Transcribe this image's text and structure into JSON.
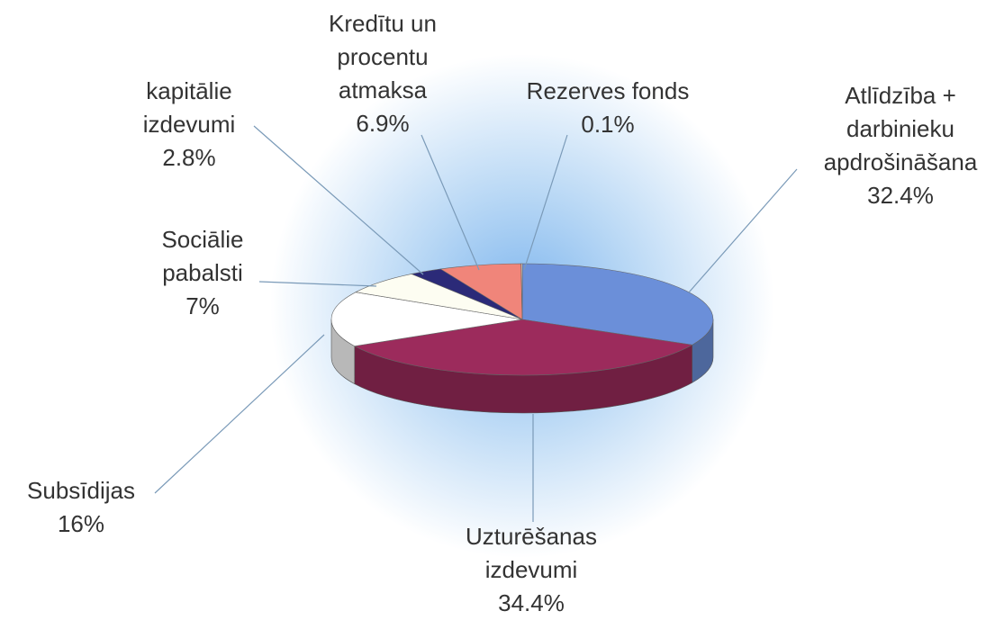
{
  "chart_data": {
    "type": "pie",
    "categories": [
      "Atlīdzība + darbinieku apdrošināšana",
      "Uzturēšanas izdevumi",
      "Subsīdijas",
      "Sociālie pabalsti",
      "kapitālie izdevumi",
      "Kredītu un procentu atmaksa",
      "Rezerves fonds"
    ],
    "values": [
      32.4,
      34.4,
      16,
      7,
      2.8,
      6.9,
      0.1
    ],
    "value_labels": [
      "32.4%",
      "34.4%",
      "16%",
      "7%",
      "2.8%",
      "6.9%",
      "0.1%"
    ],
    "colors": [
      "#6b8fd9",
      "#9c2b5c",
      "#ffffff",
      "#fdfdf2",
      "#2b2a78",
      "#f0857a",
      "#f3d9c9"
    ]
  }
}
